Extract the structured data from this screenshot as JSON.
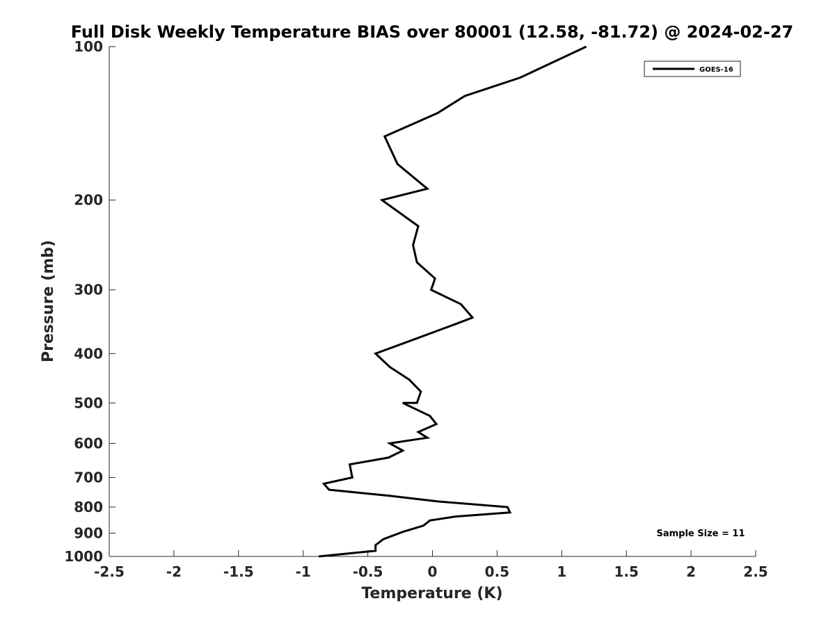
{
  "chart_data": {
    "type": "line",
    "title": "Full Disk Weekly Temperature BIAS over 80001 (12.58, -81.72) @ 2024-02-27",
    "xlabel": "Temperature (K)",
    "ylabel": "Pressure (mb)",
    "xlim": [
      -2.5,
      2.5
    ],
    "ylim": [
      100,
      1000
    ],
    "y_scale": "log",
    "y_reversed": true,
    "x_ticks": [
      "-2.5",
      "-2",
      "-1.5",
      "-1",
      "-0.5",
      "0",
      "0.5",
      "1",
      "1.5",
      "2",
      "2.5"
    ],
    "y_ticks": [
      "100",
      "200",
      "300",
      "400",
      "500",
      "600",
      "700",
      "800",
      "900",
      "1000"
    ],
    "grid": false,
    "legend_position": "top-right",
    "series": [
      {
        "name": "GOES-16",
        "color": "#000000",
        "points": [
          [
            1.19,
            100
          ],
          [
            0.68,
            115
          ],
          [
            0.25,
            125
          ],
          [
            0.04,
            135
          ],
          [
            -0.37,
            150
          ],
          [
            -0.27,
            170
          ],
          [
            -0.04,
            190
          ],
          [
            -0.39,
            200
          ],
          [
            -0.11,
            225
          ],
          [
            -0.15,
            245
          ],
          [
            -0.12,
            265
          ],
          [
            0.02,
            285
          ],
          [
            -0.01,
            300
          ],
          [
            0.22,
            320
          ],
          [
            0.31,
            340
          ],
          [
            0.18,
            350
          ],
          [
            -0.14,
            375
          ],
          [
            -0.44,
            400
          ],
          [
            -0.33,
            425
          ],
          [
            -0.18,
            450
          ],
          [
            -0.09,
            475
          ],
          [
            -0.12,
            500
          ],
          [
            -0.23,
            500
          ],
          [
            -0.02,
            530
          ],
          [
            0.03,
            550
          ],
          [
            -0.11,
            570
          ],
          [
            -0.04,
            585
          ],
          [
            -0.33,
            600
          ],
          [
            -0.23,
            620
          ],
          [
            -0.34,
            640
          ],
          [
            -0.64,
            660
          ],
          [
            -0.63,
            680
          ],
          [
            -0.62,
            700
          ],
          [
            -0.84,
            720
          ],
          [
            -0.8,
            740
          ],
          [
            -0.34,
            760
          ],
          [
            0.04,
            780
          ],
          [
            0.58,
            800
          ],
          [
            0.6,
            820
          ],
          [
            0.18,
            835
          ],
          [
            -0.02,
            850
          ],
          [
            -0.07,
            870
          ],
          [
            -0.23,
            895
          ],
          [
            -0.38,
            925
          ],
          [
            -0.44,
            950
          ],
          [
            -0.44,
            975
          ],
          [
            -0.88,
            1000
          ]
        ]
      }
    ],
    "annotations": [
      {
        "text": "Sample Size = 11",
        "position": "bottom-right"
      }
    ]
  }
}
